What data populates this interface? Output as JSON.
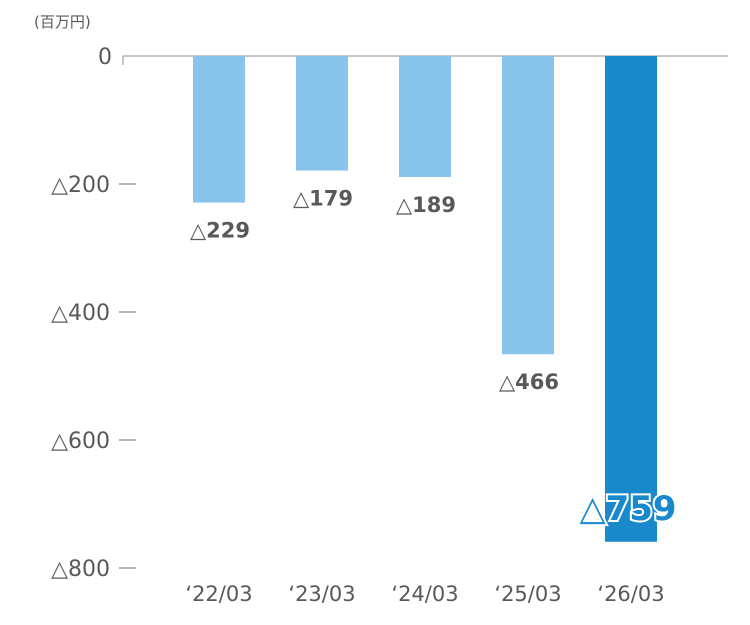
{
  "chart_data": {
    "type": "bar",
    "unit_label": "(百万円)",
    "categories": [
      "‘22/03",
      "‘23/03",
      "‘24/03",
      "‘25/03",
      "‘26/03"
    ],
    "values": [
      -229,
      -179,
      -189,
      -466,
      -759
    ],
    "data_labels": [
      "△229",
      "△179",
      "△189",
      "△466",
      "△759"
    ],
    "y_ticks": [
      {
        "value": 0,
        "label": "0"
      },
      {
        "value": -200,
        "label": "△200"
      },
      {
        "value": -400,
        "label": "△400"
      },
      {
        "value": -600,
        "label": "△600"
      },
      {
        "value": -800,
        "label": "△800"
      }
    ],
    "ylim": [
      -800,
      0
    ],
    "grid": false,
    "highlight_index": 4,
    "colors": {
      "bar": "#88c4ec",
      "bar_highlight": "#1a89cc",
      "axis": "#8c8c8c",
      "text": "#595959"
    }
  }
}
